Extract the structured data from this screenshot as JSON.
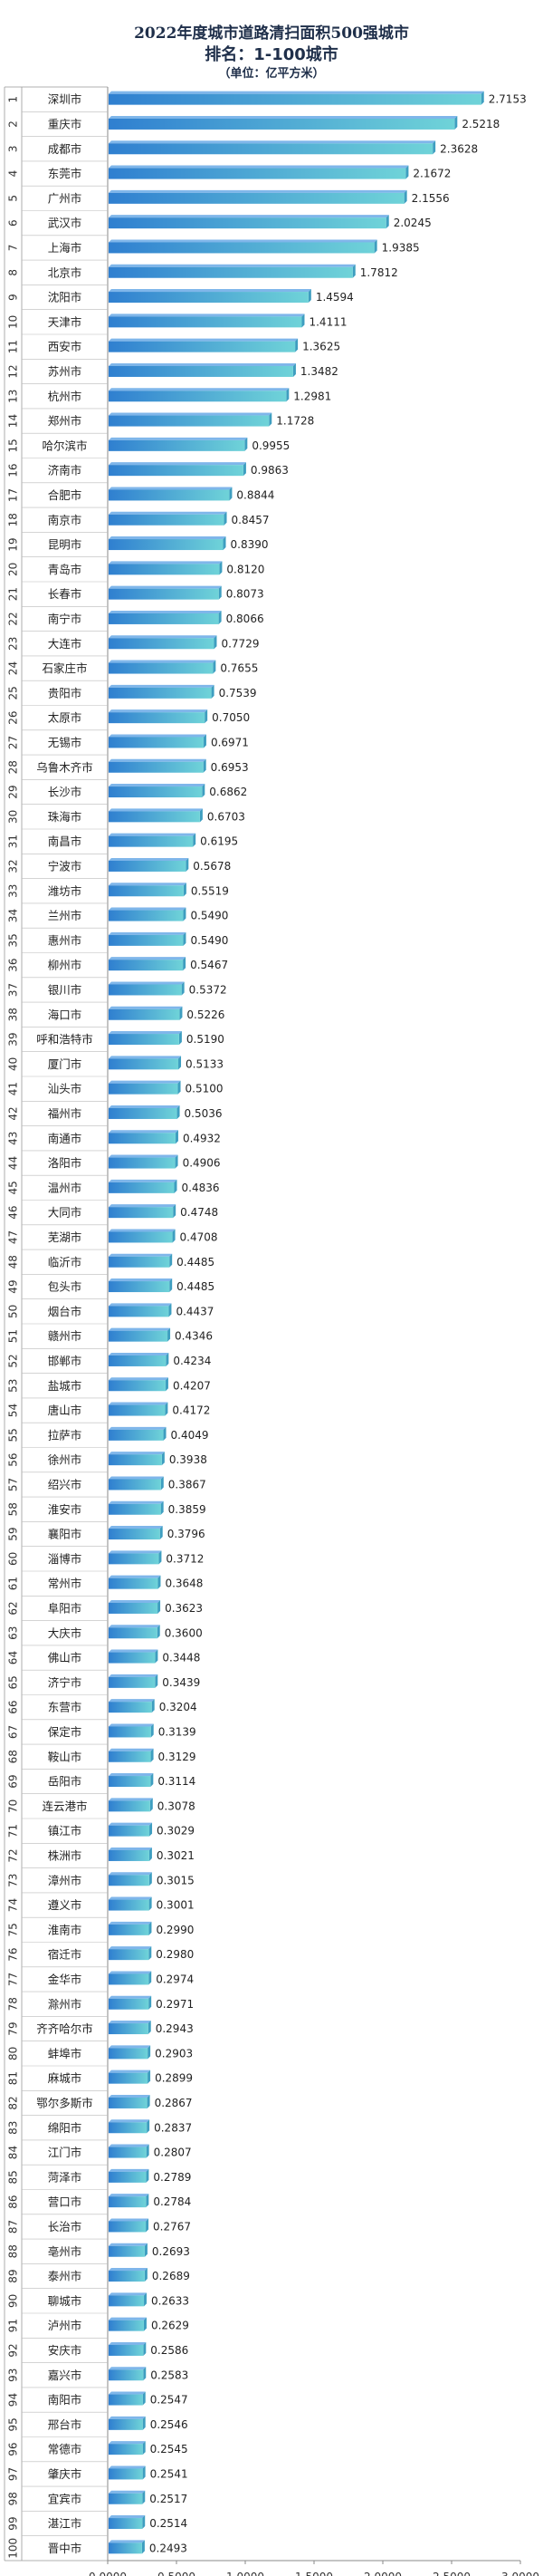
{
  "chart_data": {
    "type": "bar",
    "orientation": "horizontal",
    "title": "2022年度城市道路清扫面积500强城市",
    "subtitle": "排名：1-100城市",
    "unit": "（单位：亿平方米）",
    "xlim": [
      0,
      3.0
    ],
    "xticks": [
      "0.0000",
      "0.5000",
      "1.0000",
      "1.5000",
      "2.0000",
      "2.5000",
      "3.0000"
    ],
    "categories": [
      "深圳市",
      "重庆市",
      "成都市",
      "东莞市",
      "广州市",
      "武汉市",
      "上海市",
      "北京市",
      "沈阳市",
      "天津市",
      "西安市",
      "苏州市",
      "杭州市",
      "郑州市",
      "哈尔滨市",
      "济南市",
      "合肥市",
      "南京市",
      "昆明市",
      "青岛市",
      "长春市",
      "南宁市",
      "大连市",
      "石家庄市",
      "贵阳市",
      "太原市",
      "无锡市",
      "乌鲁木齐市",
      "长沙市",
      "珠海市",
      "南昌市",
      "宁波市",
      "潍坊市",
      "兰州市",
      "惠州市",
      "柳州市",
      "银川市",
      "海口市",
      "呼和浩特市",
      "厦门市",
      "汕头市",
      "福州市",
      "南通市",
      "洛阳市",
      "温州市",
      "大同市",
      "芜湖市",
      "临沂市",
      "包头市",
      "烟台市",
      "赣州市",
      "邯郸市",
      "盐城市",
      "唐山市",
      "拉萨市",
      "徐州市",
      "绍兴市",
      "淮安市",
      "襄阳市",
      "淄博市",
      "常州市",
      "阜阳市",
      "大庆市",
      "佛山市",
      "济宁市",
      "东营市",
      "保定市",
      "鞍山市",
      "岳阳市",
      "连云港市",
      "镇江市",
      "株洲市",
      "漳州市",
      "遵义市",
      "淮南市",
      "宿迁市",
      "金华市",
      "滁州市",
      "齐齐哈尔市",
      "蚌埠市",
      "麻城市",
      "鄂尔多斯市",
      "绵阳市",
      "江门市",
      "菏泽市",
      "营口市",
      "长治市",
      "亳州市",
      "泰州市",
      "聊城市",
      "泸州市",
      "安庆市",
      "嘉兴市",
      "南阳市",
      "邢台市",
      "常德市",
      "肇庆市",
      "宜宾市",
      "湛江市",
      "晋中市"
    ],
    "values": [
      2.7153,
      2.5218,
      2.3628,
      2.1672,
      2.1556,
      2.0245,
      1.9385,
      1.7812,
      1.4594,
      1.4111,
      1.3625,
      1.3482,
      1.2981,
      1.1728,
      0.9955,
      0.9863,
      0.8844,
      0.8457,
      0.839,
      0.812,
      0.8073,
      0.8066,
      0.7729,
      0.7655,
      0.7539,
      0.705,
      0.6971,
      0.6953,
      0.6862,
      0.6703,
      0.6195,
      0.5678,
      0.5519,
      0.549,
      0.549,
      0.5467,
      0.5372,
      0.5226,
      0.519,
      0.5133,
      0.51,
      0.5036,
      0.4932,
      0.4906,
      0.4836,
      0.4748,
      0.4708,
      0.4485,
      0.4485,
      0.4437,
      0.4346,
      0.4234,
      0.4207,
      0.4172,
      0.4049,
      0.3938,
      0.3867,
      0.3859,
      0.3796,
      0.3712,
      0.3648,
      0.3623,
      0.36,
      0.3448,
      0.3439,
      0.3204,
      0.3139,
      0.3129,
      0.3114,
      0.3078,
      0.3029,
      0.3021,
      0.3015,
      0.3001,
      0.299,
      0.298,
      0.2974,
      0.2971,
      0.2943,
      0.2903,
      0.2899,
      0.2867,
      0.2837,
      0.2807,
      0.2789,
      0.2784,
      0.2767,
      0.2693,
      0.2689,
      0.2633,
      0.2629,
      0.2586,
      0.2583,
      0.2547,
      0.2546,
      0.2545,
      0.2541,
      0.2517,
      0.2514,
      0.2493
    ],
    "bar_color_start": "#2f7fd0",
    "bar_color_end": "#6fd3d8",
    "grid": false,
    "legend": "none"
  }
}
